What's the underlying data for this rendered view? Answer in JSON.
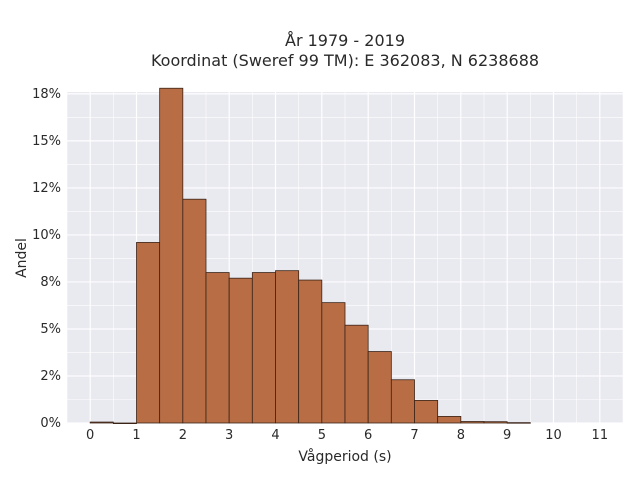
{
  "chart_data": {
    "type": "bar",
    "title_line1": "År 1979 - 2019",
    "title_line2": "Koordinat (Sweref 99 TM): E 362083, N 6238688",
    "xlabel": "Vågperiod (s)",
    "ylabel": "Andel",
    "bin_width": 0.5,
    "bins": [
      {
        "x0": 0.0,
        "value": 0.05
      },
      {
        "x0": 0.5,
        "value": 0.0
      },
      {
        "x0": 1.0,
        "value": 9.6
      },
      {
        "x0": 1.5,
        "value": 17.8
      },
      {
        "x0": 2.0,
        "value": 11.9
      },
      {
        "x0": 2.5,
        "value": 8.0
      },
      {
        "x0": 3.0,
        "value": 7.7
      },
      {
        "x0": 3.5,
        "value": 8.0
      },
      {
        "x0": 4.0,
        "value": 8.1
      },
      {
        "x0": 4.5,
        "value": 7.6
      },
      {
        "x0": 5.0,
        "value": 6.4
      },
      {
        "x0": 5.5,
        "value": 5.2
      },
      {
        "x0": 6.0,
        "value": 3.8
      },
      {
        "x0": 6.5,
        "value": 2.3
      },
      {
        "x0": 7.0,
        "value": 1.2
      },
      {
        "x0": 7.5,
        "value": 0.35
      },
      {
        "x0": 8.0,
        "value": 0.08
      },
      {
        "x0": 8.5,
        "value": 0.07
      },
      {
        "x0": 9.0,
        "value": 0.02
      }
    ],
    "xlim": [
      -0.5,
      11.5
    ],
    "ylim": [
      0,
      17.6
    ],
    "x_ticks": [
      "0",
      "1",
      "2",
      "3",
      "4",
      "5",
      "6",
      "7",
      "8",
      "9",
      "10",
      "11"
    ],
    "y_ticks": [
      {
        "value": 0,
        "label": "0%"
      },
      {
        "value": 2.5,
        "label": "2%"
      },
      {
        "value": 5.0,
        "label": "5%"
      },
      {
        "value": 7.5,
        "label": "8%"
      },
      {
        "value": 10.0,
        "label": "10%"
      },
      {
        "value": 12.5,
        "label": "12%"
      },
      {
        "value": 15.0,
        "label": "15%"
      },
      {
        "value": 17.5,
        "label": "18%"
      }
    ],
    "grid": true,
    "colors": {
      "bar_fill": "#b86d45",
      "bar_edge": "#3a2418",
      "plot_bg": "#e9e9f0",
      "grid": "#ffffff"
    }
  }
}
